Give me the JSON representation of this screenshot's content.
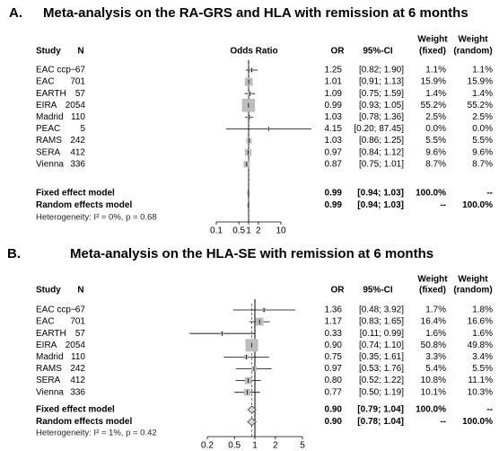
{
  "chart_data": [
    {
      "type": "forest",
      "panel": "A.",
      "title": "Meta-analysis on the RA-GRS and HLA with remission at 6 months",
      "columns": {
        "study": "Study",
        "n": "N",
        "plot": "Odds Ratio",
        "or": "OR",
        "ci": "95%-CI",
        "weight_fixed": [
          "Weight",
          "(fixed)"
        ],
        "weight_random": [
          "Weight",
          "(random)"
        ]
      },
      "categories": [
        "EAC ccp−",
        "EAC",
        "EARTH",
        "EIRA",
        "Madrid",
        "PEAC",
        "RAMS",
        "SERA",
        "Vienna"
      ],
      "n": [
        67,
        701,
        57,
        2054,
        110,
        5,
        242,
        412,
        336
      ],
      "values": [
        1.25,
        1.01,
        1.09,
        0.99,
        1.03,
        4.15,
        1.03,
        0.97,
        0.87
      ],
      "value_labels": [
        "1.25",
        "1.01",
        "1.09",
        "0.99",
        "1.03",
        "4.15",
        "1.03",
        "0.97",
        "0.87"
      ],
      "lower": [
        0.82,
        0.91,
        0.75,
        0.93,
        0.78,
        0.2,
        0.86,
        0.84,
        0.75
      ],
      "upper": [
        1.9,
        1.13,
        1.59,
        1.05,
        1.36,
        87.45,
        1.25,
        1.12,
        1.01
      ],
      "ci_labels": [
        "[0.82; 1.90]",
        "[0.91; 1.13]",
        "[0.75; 1.59]",
        "[0.93; 1.05]",
        "[0.78; 1.36]",
        "[0.20; 87.45]",
        "[0.86; 1.25]",
        "[0.84; 1.12]",
        "[0.75; 1.01]"
      ],
      "weight_fixed": [
        1.1,
        15.9,
        1.4,
        55.2,
        2.5,
        0.0,
        5.5,
        9.6,
        8.7
      ],
      "weight_fixed_labels": [
        "1.1%",
        "15.9%",
        "1.4%",
        "55.2%",
        "2.5%",
        "0.0%",
        "5.5%",
        "9.6%",
        "8.7%"
      ],
      "weight_random": [
        1.1,
        15.9,
        1.4,
        55.2,
        2.5,
        0.0,
        5.5,
        9.6,
        8.7
      ],
      "weight_random_labels": [
        "1.1%",
        "15.9%",
        "1.4%",
        "55.2%",
        "2.5%",
        "0.0%",
        "5.5%",
        "9.6%",
        "8.7%"
      ],
      "summary": [
        {
          "name": "Fixed effect model",
          "value": 0.99,
          "value_label": "0.99",
          "lower": 0.94,
          "upper": 1.03,
          "ci_label": "[0.94; 1.03]",
          "weights": [
            100.0,
            null
          ],
          "weight_labels": [
            "100.0%",
            "--"
          ]
        },
        {
          "name": "Random effects model",
          "value": 0.99,
          "value_label": "0.99",
          "lower": 0.94,
          "upper": 1.03,
          "ci_label": "[0.94; 1.03]",
          "weights": [
            null,
            100.0
          ],
          "weight_labels": [
            "--",
            "100.0%"
          ]
        }
      ],
      "heterogeneity": "Heterogeneity: I² = 0%, p = 0.68",
      "log_x": true,
      "xlim": [
        0.1,
        10
      ],
      "xticks": [
        0.1,
        0.5,
        1,
        2,
        10
      ],
      "square_color": "#bdbdbd",
      "line_color": "#000000"
    },
    {
      "type": "forest",
      "panel": "B.",
      "title": "Meta-analysis on the HLA-SE with remission at 6 months",
      "columns": {
        "study": "Study",
        "n": "N",
        "plot": "",
        "or": "OR",
        "ci": "95%-CI",
        "weight_fixed": [
          "Weight",
          "(fixed)"
        ],
        "weight_random": [
          "Weight",
          "(random)"
        ]
      },
      "categories": [
        "EAC ccp−",
        "EAC",
        "EARTH",
        "EIRA",
        "Madrid",
        "RAMS",
        "SERA",
        "Vienna"
      ],
      "n": [
        67,
        701,
        57,
        2054,
        110,
        242,
        412,
        336
      ],
      "values": [
        1.36,
        1.17,
        0.33,
        0.9,
        0.75,
        0.97,
        0.8,
        0.77
      ],
      "value_labels": [
        "1.36",
        "1.17",
        "0.33",
        "0.90",
        "0.75",
        "0.97",
        "0.80",
        "0.77"
      ],
      "lower": [
        0.48,
        0.83,
        0.11,
        0.74,
        0.35,
        0.53,
        0.52,
        0.5
      ],
      "upper": [
        3.92,
        1.65,
        0.99,
        1.1,
        1.61,
        1.76,
        1.22,
        1.19
      ],
      "ci_labels": [
        "[0.48; 3.92]",
        "[0.83; 1.65]",
        "[0.11; 0.99]",
        "[0.74; 1.10]",
        "[0.35; 1.61]",
        "[0.53; 1.76]",
        "[0.52; 1.22]",
        "[0.50; 1.19]"
      ],
      "weight_fixed": [
        1.7,
        16.4,
        1.6,
        50.8,
        3.3,
        5.4,
        10.8,
        10.1
      ],
      "weight_fixed_labels": [
        "1.7%",
        "16.4%",
        "1.6%",
        "50.8%",
        "3.3%",
        "5.4%",
        "10.8%",
        "10.1%"
      ],
      "weight_random": [
        1.8,
        16.6,
        1.6,
        49.8,
        3.4,
        5.5,
        11.1,
        10.3
      ],
      "weight_random_labels": [
        "1.8%",
        "16.6%",
        "1.6%",
        "49.8%",
        "3.4%",
        "5.5%",
        "11.1%",
        "10.3%"
      ],
      "summary": [
        {
          "name": "Fixed effect model",
          "value": 0.9,
          "value_label": "0.90",
          "lower": 0.79,
          "upper": 1.04,
          "ci_label": "[0.79; 1.04]",
          "weights": [
            100.0,
            null
          ],
          "weight_labels": [
            "100.0%",
            "--"
          ]
        },
        {
          "name": "Random effects model",
          "value": 0.9,
          "value_label": "0.90",
          "lower": 0.78,
          "upper": 1.04,
          "ci_label": "[0.78; 1.04]",
          "weights": [
            null,
            100.0
          ],
          "weight_labels": [
            "--",
            "100.0%"
          ]
        }
      ],
      "heterogeneity": "Heterogeneity: I² = 1%, p = 0.42",
      "log_x": true,
      "xlim": [
        0.2,
        5
      ],
      "xticks": [
        0.2,
        0.5,
        1,
        2,
        5
      ],
      "square_color": "#bdbdbd",
      "line_color": "#000000"
    }
  ]
}
